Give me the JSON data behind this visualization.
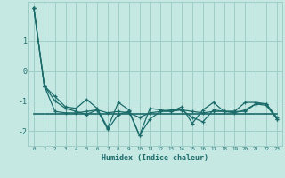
{
  "xlabel": "Humidex (Indice chaleur)",
  "ylabel": "",
  "bg_color": "#c5e8e3",
  "grid_color": "#9ecdc7",
  "line_color": "#1a6b6a",
  "x_values": [
    0,
    1,
    2,
    3,
    4,
    5,
    6,
    7,
    8,
    9,
    10,
    11,
    12,
    13,
    14,
    15,
    16,
    17,
    18,
    19,
    20,
    21,
    22,
    23
  ],
  "lines": [
    [
      2.1,
      -0.5,
      -0.85,
      -1.2,
      -1.25,
      -0.95,
      -1.25,
      -1.9,
      -1.05,
      -1.3,
      -2.15,
      -1.25,
      -1.3,
      -1.35,
      -1.2,
      -1.75,
      -1.3,
      -1.05,
      -1.35,
      -1.35,
      -1.05,
      -1.05,
      -1.1,
      -1.55
    ],
    [
      2.1,
      -0.5,
      -1.0,
      -1.25,
      -1.35,
      -1.45,
      -1.3,
      -1.95,
      -1.45,
      -1.35,
      -2.15,
      -1.6,
      -1.35,
      -1.3,
      -1.3,
      -1.55,
      -1.7,
      -1.3,
      -1.35,
      -1.4,
      -1.3,
      -1.1,
      -1.1,
      -1.6
    ],
    [
      2.1,
      -0.5,
      -1.35,
      -1.4,
      -1.4,
      -1.35,
      -1.3,
      -1.4,
      -1.35,
      -1.4,
      -1.55,
      -1.4,
      -1.35,
      -1.35,
      -1.3,
      -1.35,
      -1.4,
      -1.35,
      -1.35,
      -1.35,
      -1.35,
      -1.1,
      -1.15,
      -1.6
    ]
  ],
  "flat_line_x": [
    0,
    23
  ],
  "flat_line_y": [
    -1.42,
    -1.42
  ],
  "ylim": [
    -2.5,
    2.3
  ],
  "yticks": [
    -2,
    -1,
    0,
    1
  ],
  "xlim": [
    -0.5,
    23.5
  ]
}
